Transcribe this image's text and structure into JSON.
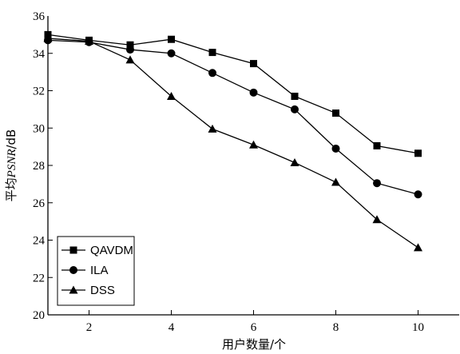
{
  "chart_data": {
    "type": "line",
    "xlabel": "用户数量/个",
    "ylabel_prefix": "平均",
    "ylabel_italic": "PSNR",
    "ylabel_suffix": "/dB",
    "xlim": [
      1,
      11
    ],
    "ylim": [
      20,
      36
    ],
    "xticks": [
      2,
      4,
      6,
      8,
      10
    ],
    "yticks": [
      20,
      22,
      24,
      26,
      28,
      30,
      32,
      34,
      36
    ],
    "legend_position": "bottom-left",
    "grid": false,
    "x": [
      1,
      2,
      3,
      4,
      5,
      6,
      7,
      8,
      9,
      10
    ],
    "series": [
      {
        "name": "QAVDM",
        "marker": "square",
        "values": [
          35.0,
          34.7,
          34.45,
          34.75,
          34.05,
          33.45,
          31.7,
          30.8,
          29.05,
          28.65
        ]
      },
      {
        "name": "ILA",
        "marker": "circle",
        "values": [
          34.7,
          34.6,
          34.2,
          34.0,
          32.95,
          31.9,
          31.0,
          28.9,
          27.05,
          26.45
        ]
      },
      {
        "name": "DSS",
        "marker": "triangle",
        "values": [
          34.8,
          34.65,
          33.65,
          31.7,
          29.95,
          29.1,
          28.15,
          27.1,
          25.1,
          23.6
        ]
      }
    ]
  }
}
